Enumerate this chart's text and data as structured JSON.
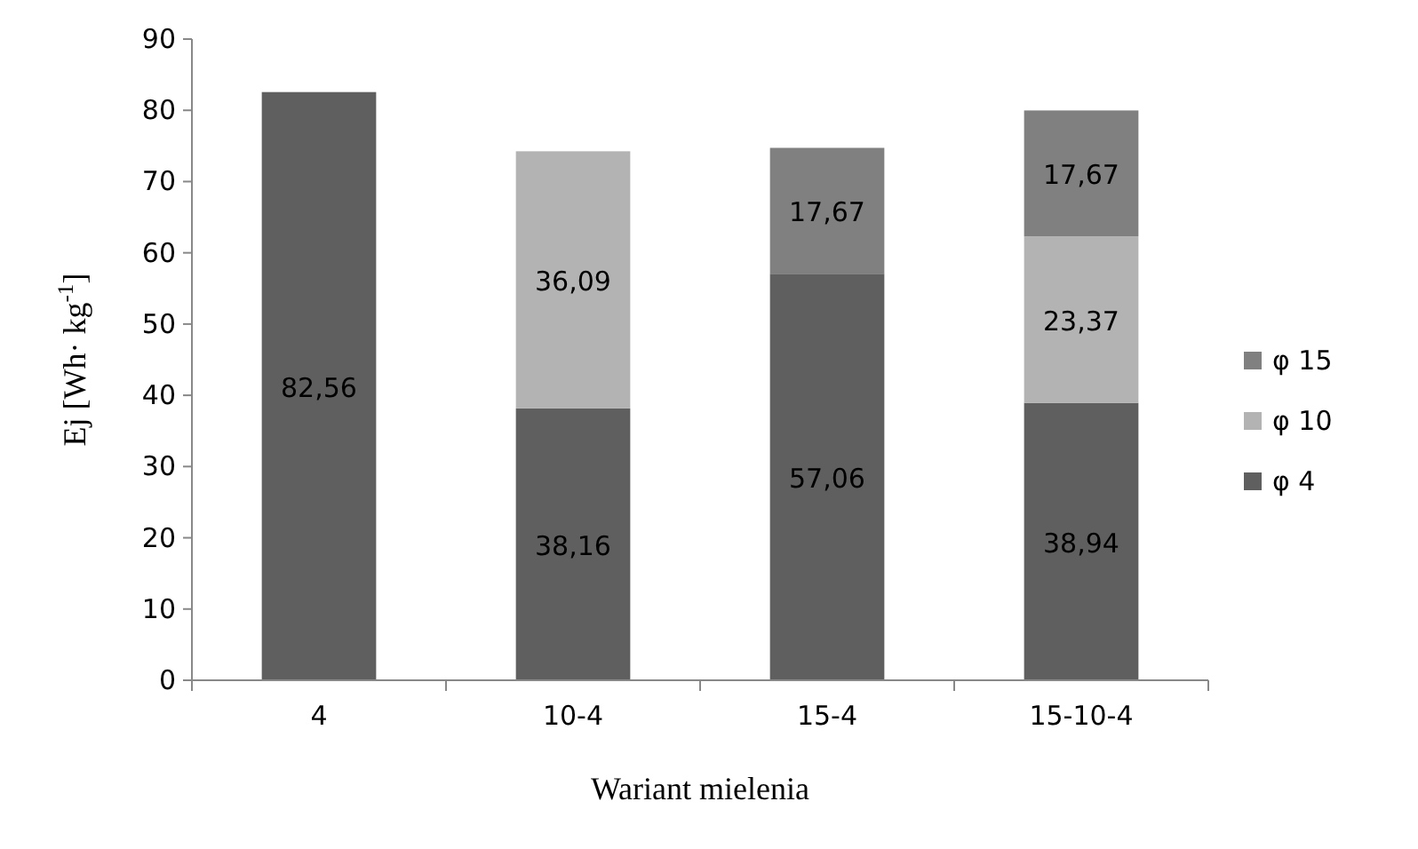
{
  "chart_data": {
    "type": "bar",
    "stacked": true,
    "xlabel": "Wariant mielenia",
    "ylabel": "Ej [Wh· kg$^{-1}$]",
    "categories": [
      "4",
      "10-4",
      "15-4",
      "15-10-4"
    ],
    "series": [
      {
        "name": "φ 4",
        "color": "#5f5f5f",
        "values": [
          82.56,
          38.16,
          57.06,
          38.94
        ],
        "value_labels": [
          "82,56",
          "38,16",
          "57,06",
          "38,94"
        ]
      },
      {
        "name": "φ 10",
        "color": "#b3b3b3",
        "values": [
          null,
          36.09,
          null,
          23.37
        ],
        "value_labels": [
          null,
          "36,09",
          null,
          "23,37"
        ]
      },
      {
        "name": "φ 15",
        "color": "#808080",
        "values": [
          null,
          null,
          17.67,
          17.67
        ],
        "value_labels": [
          null,
          null,
          "17,67",
          "17,67"
        ]
      }
    ],
    "ylim": [
      0,
      90
    ],
    "yticks": [
      0,
      10,
      20,
      30,
      40,
      50,
      60,
      70,
      80,
      90
    ],
    "grid": false,
    "legend": "right"
  }
}
